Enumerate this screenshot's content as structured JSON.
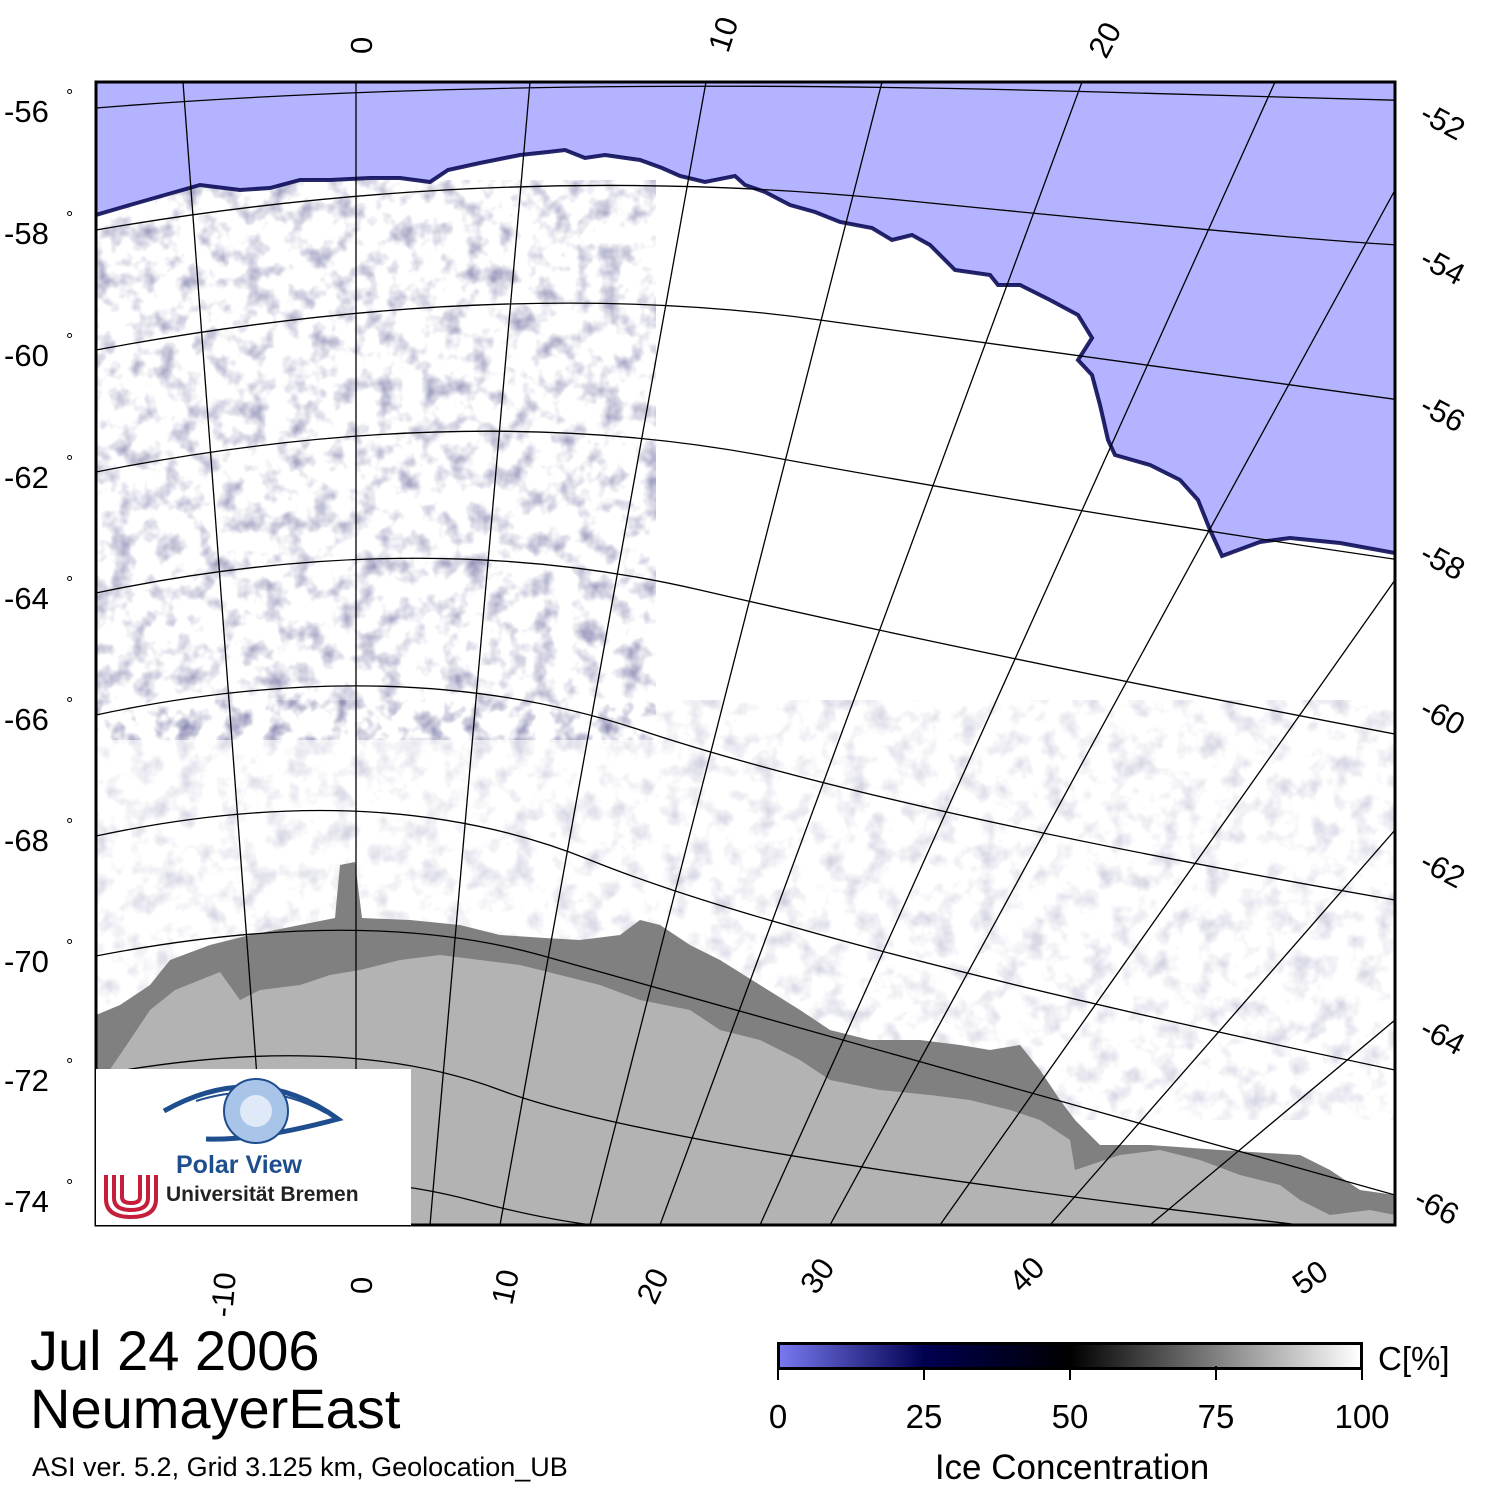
{
  "header": {
    "date": "Jul 24 2006",
    "region": "NeumayerEast",
    "metadata": "ASI ver. 5.2,  Grid 3.125 km, Geolocation_UB"
  },
  "map": {
    "left_lat_labels": [
      "-56",
      "-58",
      "-60",
      "-62",
      "-64",
      "-66",
      "-68",
      "-70",
      "-72",
      "-74"
    ],
    "right_lat_labels": [
      "-52",
      "-54",
      "-56",
      "-58",
      "-60",
      "-62",
      "-64",
      "-66"
    ],
    "top_lon_labels": [
      "0",
      "10",
      "20"
    ],
    "bottom_lon_labels": [
      "-10",
      "0",
      "10",
      "20",
      "30",
      "40",
      "50"
    ],
    "degree_symbol": "°",
    "colors": {
      "open_water": "#b3b3ff",
      "ice_edge": "#000050",
      "land_ice_shelf": "#808080",
      "land": "#b3b3b3",
      "ice_full": "#ffffff"
    }
  },
  "colorbar": {
    "title": "Ice Concentration",
    "unit": "C[%]",
    "ticks": [
      "0",
      "25",
      "50",
      "75",
      "100"
    ],
    "stops": [
      "#7878f0",
      "#000050",
      "#000000",
      "#ffffff"
    ]
  },
  "logo": {
    "title": "Polar View",
    "institution": "Universität Bremen"
  }
}
